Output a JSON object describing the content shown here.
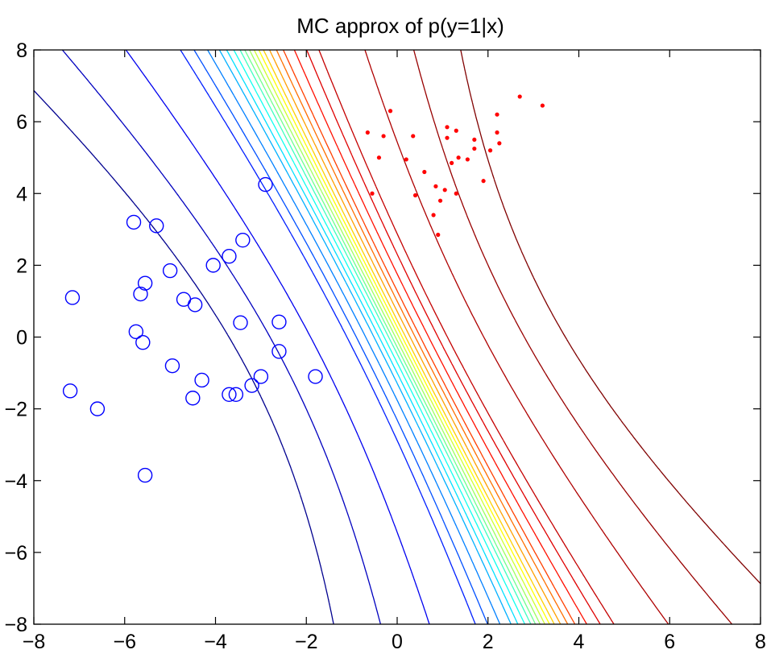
{
  "chart_data": {
    "type": "contour",
    "title": "MC approx of p(y=1|x)",
    "xlabel": "",
    "ylabel": "",
    "xlim": [
      -8,
      8
    ],
    "ylim": [
      -8,
      8
    ],
    "x_ticks": [
      "−8",
      "−6",
      "−4",
      "−2",
      "0",
      "2",
      "4",
      "6",
      "8"
    ],
    "y_ticks": [
      "−8",
      "−6",
      "−4",
      "−2",
      "0",
      "2",
      "4",
      "6",
      "8"
    ],
    "grid": false,
    "legend": "none",
    "contour": {
      "levels": 24,
      "colormap": "jet",
      "level_colors": [
        "#00008f",
        "#0000bf",
        "#0000ef",
        "#001fff",
        "#004fff",
        "#007fff",
        "#00afff",
        "#00dfff",
        "#0fffef",
        "#3fffbf",
        "#6fff8f",
        "#9fff5f",
        "#cfff2f",
        "#ffff00",
        "#ffcf00",
        "#ff9f00",
        "#ff6f00",
        "#ff3f00",
        "#ff0f00",
        "#df0000",
        "#c40000",
        "#ae0000",
        "#980000",
        "#800000"
      ],
      "level_shifts": [
        -3.4,
        -1.05,
        -0.5,
        -0.2,
        0
      ]
    },
    "series": [
      {
        "marker": "circle",
        "color": "#0000ff",
        "points": [
          [
            -2.9,
            4.25
          ],
          [
            -5.8,
            3.2
          ],
          [
            -5.3,
            3.1
          ],
          [
            -3.4,
            2.7
          ],
          [
            -3.7,
            2.25
          ],
          [
            -4.05,
            2.0
          ],
          [
            -5.0,
            1.85
          ],
          [
            -5.55,
            1.5
          ],
          [
            -5.65,
            1.2
          ],
          [
            -7.15,
            1.1
          ],
          [
            -4.7,
            1.05
          ],
          [
            -4.45,
            0.9
          ],
          [
            -3.45,
            0.4
          ],
          [
            -2.6,
            0.42
          ],
          [
            -5.75,
            0.15
          ],
          [
            -5.6,
            -0.15
          ],
          [
            -2.6,
            -0.4
          ],
          [
            -4.95,
            -0.8
          ],
          [
            -3.0,
            -1.1
          ],
          [
            -1.8,
            -1.1
          ],
          [
            -4.3,
            -1.2
          ],
          [
            -3.2,
            -1.35
          ],
          [
            -7.2,
            -1.5
          ],
          [
            -4.5,
            -1.7
          ],
          [
            -3.7,
            -1.6
          ],
          [
            -3.55,
            -1.6
          ],
          [
            -6.6,
            -2.0
          ],
          [
            -5.55,
            -3.85
          ]
        ]
      },
      {
        "marker": "dot",
        "color": "#ff0000",
        "points": [
          [
            -0.15,
            6.3
          ],
          [
            2.7,
            6.7
          ],
          [
            3.2,
            6.45
          ],
          [
            2.2,
            6.2
          ],
          [
            -0.65,
            5.7
          ],
          [
            -0.3,
            5.6
          ],
          [
            0.35,
            5.6
          ],
          [
            1.1,
            5.85
          ],
          [
            1.3,
            5.75
          ],
          [
            1.1,
            5.55
          ],
          [
            2.2,
            5.7
          ],
          [
            1.7,
            5.5
          ],
          [
            2.25,
            5.4
          ],
          [
            1.7,
            5.25
          ],
          [
            2.05,
            5.2
          ],
          [
            -0.4,
            5.0
          ],
          [
            0.2,
            4.95
          ],
          [
            1.2,
            4.85
          ],
          [
            1.35,
            5.0
          ],
          [
            1.55,
            4.95
          ],
          [
            0.6,
            4.6
          ],
          [
            1.9,
            4.35
          ],
          [
            -0.55,
            4.0
          ],
          [
            0.4,
            3.95
          ],
          [
            0.85,
            4.2
          ],
          [
            1.05,
            4.1
          ],
          [
            1.3,
            4.0
          ],
          [
            0.95,
            3.8
          ],
          [
            0.8,
            3.4
          ],
          [
            0.9,
            2.85
          ]
        ]
      }
    ]
  }
}
